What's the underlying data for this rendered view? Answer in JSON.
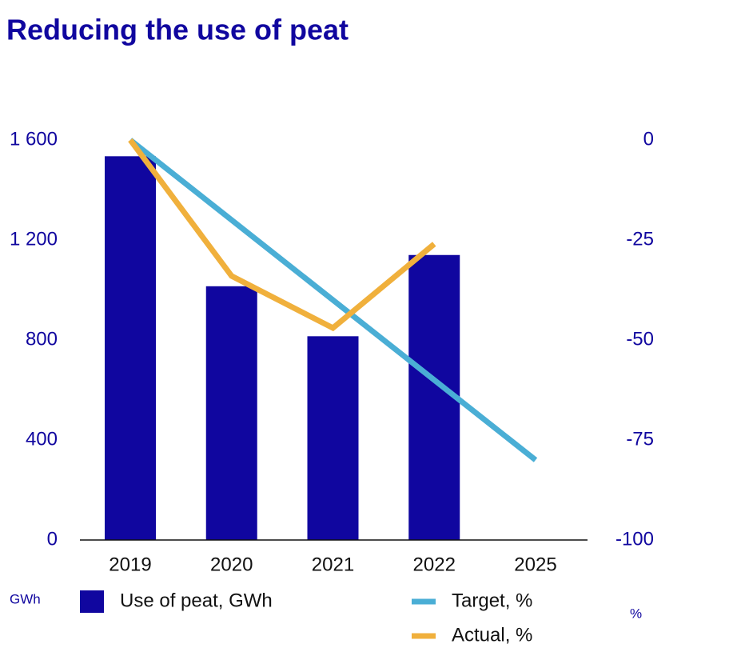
{
  "chart_data": {
    "type": "bar+line",
    "title": "Reducing the use of peat",
    "categories": [
      "2019",
      "2020",
      "2021",
      "2022",
      "2025"
    ],
    "ylabel": "GWh",
    "y2label": "%",
    "ylim": [
      0,
      1600
    ],
    "yticks": [
      0,
      400,
      800,
      {
        "value": 1200,
        "label": "1 200"
      },
      {
        "value": 1600,
        "label": "1 600"
      }
    ],
    "y2lim": [
      -100,
      0
    ],
    "y2ticks": [
      -100,
      -75,
      -50,
      -25,
      0
    ],
    "series": [
      {
        "name": "Use of peat, GWh",
        "type": "bar",
        "color": "#10069f",
        "values": [
          1535,
          1015,
          815,
          1140,
          null
        ]
      },
      {
        "name": "Target, %",
        "type": "line",
        "axis": "y2",
        "color": "#4aaed5",
        "values": [
          0,
          -20,
          -40,
          -60,
          -80
        ]
      },
      {
        "name": "Actual, %",
        "type": "line",
        "axis": "y2",
        "color": "#f0b03c",
        "values": [
          0,
          -34,
          -47,
          -26,
          null
        ]
      }
    ]
  }
}
